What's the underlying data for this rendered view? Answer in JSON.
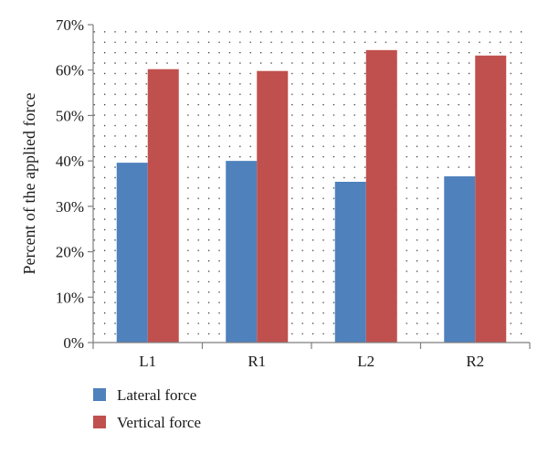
{
  "chart_data": {
    "type": "bar",
    "title": "",
    "xlabel": "",
    "ylabel": "Percent of the applied force",
    "categories": [
      "L1",
      "R1",
      "L2",
      "R2"
    ],
    "series": [
      {
        "name": "Lateral force",
        "color": "#4f81bd",
        "values": [
          39.6,
          40.0,
          35.4,
          36.6
        ]
      },
      {
        "name": "Vertical force",
        "color": "#c0504d",
        "values": [
          60.2,
          59.8,
          64.4,
          63.2
        ]
      }
    ],
    "ylim": [
      0,
      70
    ],
    "yticks": [
      0,
      10,
      20,
      30,
      40,
      50,
      60,
      70
    ],
    "ytick_labels": [
      "0%",
      "10%",
      "20%",
      "30%",
      "40%",
      "50%",
      "60%",
      "70%"
    ],
    "grid": "dotted",
    "legend_position": "bottom-left"
  }
}
